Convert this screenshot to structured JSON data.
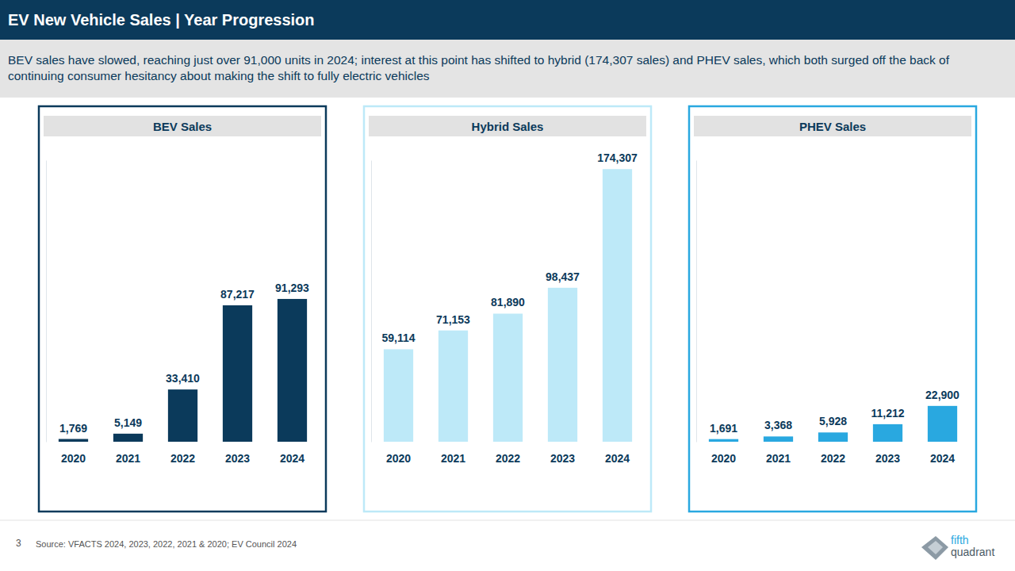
{
  "slide": {
    "title": "EV New Vehicle Sales | Year Progression",
    "subtitle": "BEV sales have slowed, reaching just over 91,000 units in 2024; interest at this point has shifted to hybrid (174,307 sales) and PHEV sales, which both surged off the back of continuing consumer hesitancy about making the shift to fully electric vehicles",
    "page_number": 3,
    "source": "Source: VFACTS 2024, 2023, 2022, 2021 & 2020; EV Council 2024",
    "logo": [
      "fifth",
      "quadrant"
    ]
  },
  "chart_data": [
    {
      "type": "bar",
      "title": "BEV Sales",
      "categories": [
        "2020",
        "2021",
        "2022",
        "2023",
        "2024"
      ],
      "values": [
        1769,
        5149,
        33410,
        87217,
        91293
      ],
      "value_labels": [
        "1,769",
        "5,149",
        "33,410",
        "87,217",
        "91,293"
      ],
      "color": "#0b3a5b",
      "ylim": [
        0,
        180000
      ],
      "yticks": [],
      "data_labels": true,
      "tick_labels": "x"
    },
    {
      "type": "bar",
      "title": "Hybrid Sales",
      "categories": [
        "2020",
        "2021",
        "2022",
        "2023",
        "2024"
      ],
      "values": [
        59114,
        71153,
        81890,
        98437,
        174307
      ],
      "value_labels": [
        "59,114",
        "71,153",
        "81,890",
        "98,437",
        "174,307"
      ],
      "color": "#bde9f8",
      "ylim": [
        0,
        180000
      ],
      "yticks": [],
      "data_labels": true,
      "tick_labels": "x"
    },
    {
      "type": "bar",
      "title": "PHEV Sales",
      "categories": [
        "2020",
        "2021",
        "2022",
        "2023",
        "2024"
      ],
      "values": [
        1691,
        3368,
        5928,
        11212,
        22900
      ],
      "value_labels": [
        "1,691",
        "3,368",
        "5,928",
        "11,212",
        "22,900"
      ],
      "color": "#29a8e0",
      "ylim": [
        0,
        180000
      ],
      "yticks": [],
      "data_labels": true,
      "tick_labels": "x"
    }
  ]
}
